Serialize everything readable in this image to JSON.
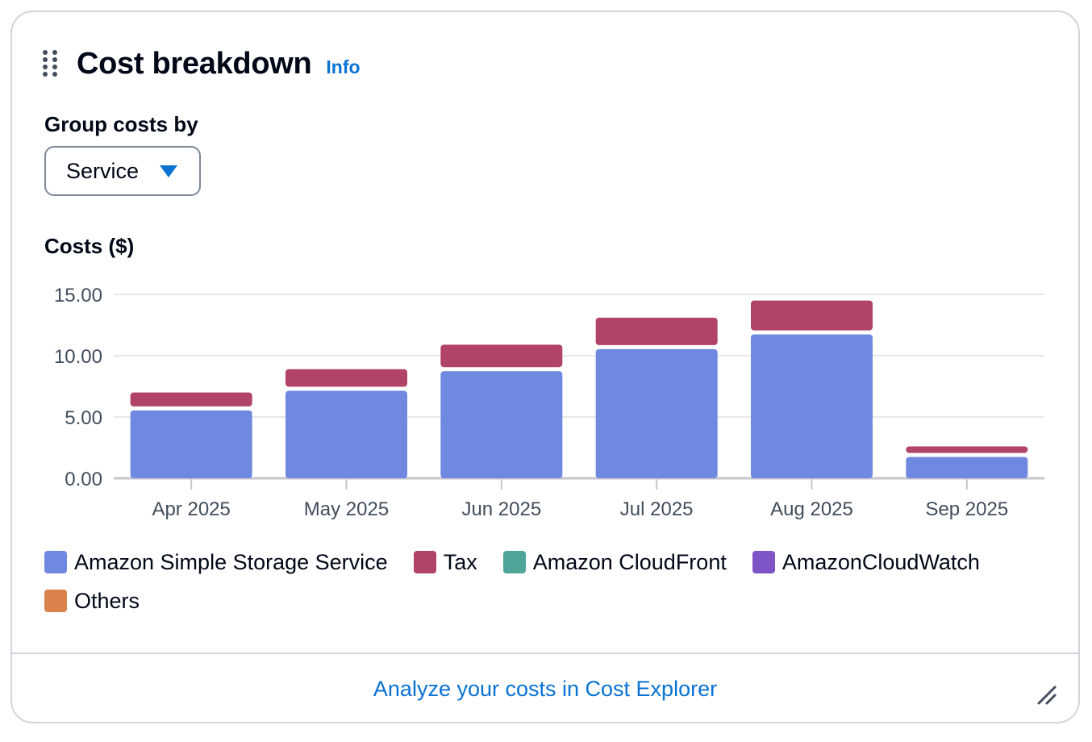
{
  "header": {
    "title": "Cost breakdown",
    "info_label": "Info"
  },
  "group_by": {
    "label": "Group costs by",
    "selected": "Service"
  },
  "chart_data": {
    "type": "bar",
    "stacked": true,
    "title": "Costs ($)",
    "xlabel": "",
    "ylabel": "",
    "categories": [
      "Apr 2025",
      "May 2025",
      "Jun 2025",
      "Jul 2025",
      "Aug 2025",
      "Sep 2025"
    ],
    "series": [
      {
        "name": "Amazon Simple Storage Service",
        "values": [
          5.7,
          7.3,
          8.9,
          10.7,
          11.9,
          1.9
        ]
      },
      {
        "name": "Tax",
        "values": [
          1.3,
          1.6,
          2.0,
          2.4,
          2.6,
          0.7
        ]
      },
      {
        "name": "Amazon CloudFront",
        "values": [
          0,
          0,
          0,
          0,
          0,
          0
        ]
      },
      {
        "name": "AmazonCloudWatch",
        "values": [
          0,
          0,
          0,
          0,
          0,
          0
        ]
      },
      {
        "name": "Others",
        "values": [
          0,
          0,
          0,
          0,
          0,
          0
        ]
      }
    ],
    "ylim": [
      0,
      15
    ],
    "yticks": [
      "0.00",
      "5.00",
      "10.00",
      "15.00"
    ],
    "grid": true,
    "legend": "bottom",
    "colors": [
      "#6f89e0",
      "#b14366",
      "#4ea597",
      "#7d55c7",
      "#d9824a"
    ]
  },
  "footer": {
    "link_label": "Analyze your costs in Cost Explorer"
  }
}
